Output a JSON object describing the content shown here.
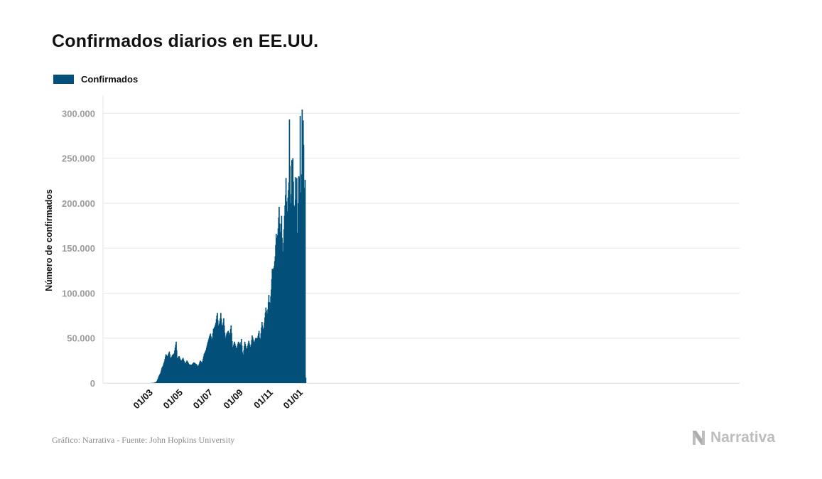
{
  "title": "Confirmados diarios en EE.UU.",
  "legend": {
    "label": "Confirmados",
    "color": "#03507a"
  },
  "footer": "Gráfico: Narrativa - Fuente: John Hopkins University",
  "brand": {
    "name": "Narrativa",
    "icon": "narrativa-n-logo"
  },
  "colors": {
    "bar": "#03507a",
    "grid": "#e6e6e6",
    "tick": "#9b9b9b"
  },
  "chart_data": {
    "type": "bar",
    "ylabel": "Número de confirmados",
    "xlabel": "",
    "ylim": [
      0,
      320000
    ],
    "yticks": [
      0,
      50000,
      100000,
      150000,
      200000,
      250000,
      300000
    ],
    "ytick_labels": [
      "0",
      "50.000",
      "100.000",
      "150.000",
      "200.000",
      "250.000",
      "300.000"
    ],
    "xticks": [
      "01/03",
      "01/05",
      "01/07",
      "01/09",
      "01/11",
      "01/01"
    ],
    "x_start": "2020-01-22",
    "x_end": "2021-01-12",
    "grid": true,
    "legend": "top-left",
    "series": [
      {
        "name": "Confirmados",
        "points": [
          [
            "2020-01-22",
            0
          ],
          [
            "2020-02-29",
            0
          ],
          [
            "2020-03-02",
            20
          ],
          [
            "2020-03-06",
            100
          ],
          [
            "2020-03-10",
            400
          ],
          [
            "2020-03-14",
            1000
          ],
          [
            "2020-03-16",
            2500
          ],
          [
            "2020-03-18",
            5000
          ],
          [
            "2020-03-20",
            8000
          ],
          [
            "2020-03-23",
            11000
          ],
          [
            "2020-03-26",
            17000
          ],
          [
            "2020-03-28",
            19000
          ],
          [
            "2020-03-31",
            24000
          ],
          [
            "2020-04-03",
            32000
          ],
          [
            "2020-04-06",
            29000
          ],
          [
            "2020-04-08",
            32000
          ],
          [
            "2020-04-10",
            35000
          ],
          [
            "2020-04-13",
            26000
          ],
          [
            "2020-04-16",
            31000
          ],
          [
            "2020-04-20",
            33000
          ],
          [
            "2020-04-24",
            46000
          ],
          [
            "2020-04-26",
            27000
          ],
          [
            "2020-04-30",
            30000
          ],
          [
            "2020-05-04",
            24000
          ],
          [
            "2020-05-08",
            28000
          ],
          [
            "2020-05-12",
            21000
          ],
          [
            "2020-05-16",
            25000
          ],
          [
            "2020-05-20",
            21000
          ],
          [
            "2020-05-25",
            20000
          ],
          [
            "2020-05-30",
            23000
          ],
          [
            "2020-06-04",
            21000
          ],
          [
            "2020-06-08",
            18000
          ],
          [
            "2020-06-12",
            25000
          ],
          [
            "2020-06-16",
            22000
          ],
          [
            "2020-06-20",
            32000
          ],
          [
            "2020-06-24",
            37000
          ],
          [
            "2020-06-27",
            44000
          ],
          [
            "2020-07-01",
            52000
          ],
          [
            "2020-07-03",
            55000
          ],
          [
            "2020-07-06",
            46000
          ],
          [
            "2020-07-09",
            60000
          ],
          [
            "2020-07-12",
            63000
          ],
          [
            "2020-07-14",
            67000
          ],
          [
            "2020-07-16",
            75000
          ],
          [
            "2020-07-17",
            78000
          ],
          [
            "2020-07-19",
            62000
          ],
          [
            "2020-07-21",
            66000
          ],
          [
            "2020-07-23",
            72000
          ],
          [
            "2020-07-24",
            78000
          ],
          [
            "2020-07-26",
            65000
          ],
          [
            "2020-07-28",
            63000
          ],
          [
            "2020-07-30",
            72000
          ],
          [
            "2020-08-02",
            48000
          ],
          [
            "2020-08-05",
            55000
          ],
          [
            "2020-08-08",
            58000
          ],
          [
            "2020-08-11",
            52000
          ],
          [
            "2020-08-14",
            64000
          ],
          [
            "2020-08-17",
            38000
          ],
          [
            "2020-08-21",
            46000
          ],
          [
            "2020-08-25",
            37000
          ],
          [
            "2020-08-29",
            46000
          ],
          [
            "2020-09-02",
            42000
          ],
          [
            "2020-09-04",
            49000
          ],
          [
            "2020-09-07",
            27000
          ],
          [
            "2020-09-11",
            46000
          ],
          [
            "2020-09-15",
            36000
          ],
          [
            "2020-09-19",
            47000
          ],
          [
            "2020-09-23",
            38000
          ],
          [
            "2020-09-26",
            53000
          ],
          [
            "2020-09-30",
            44000
          ],
          [
            "2020-10-03",
            50000
          ],
          [
            "2020-10-07",
            50000
          ],
          [
            "2020-10-10",
            58000
          ],
          [
            "2020-10-12",
            43000
          ],
          [
            "2020-10-16",
            68000
          ],
          [
            "2020-10-19",
            56000
          ],
          [
            "2020-10-22",
            73000
          ],
          [
            "2020-10-24",
            84000
          ],
          [
            "2020-10-27",
            74000
          ],
          [
            "2020-10-30",
            98000
          ],
          [
            "2020-11-01",
            82000
          ],
          [
            "2020-11-04",
            104000
          ],
          [
            "2020-11-06",
            127000
          ],
          [
            "2020-11-08",
            126000
          ],
          [
            "2020-11-10",
            130000
          ],
          [
            "2020-11-12",
            141000
          ],
          [
            "2020-11-14",
            166000
          ],
          [
            "2020-11-16",
            157000
          ],
          [
            "2020-11-18",
            172000
          ],
          [
            "2020-11-20",
            196000
          ],
          [
            "2020-11-22",
            159000
          ],
          [
            "2020-11-25",
            186000
          ],
          [
            "2020-11-27",
            137000
          ],
          [
            "2020-11-29",
            156000
          ],
          [
            "2020-12-01",
            186000
          ],
          [
            "2020-12-03",
            209000
          ],
          [
            "2020-12-04",
            228000
          ],
          [
            "2020-12-06",
            176000
          ],
          [
            "2020-12-08",
            206000
          ],
          [
            "2020-12-10",
            223000
          ],
          [
            "2020-12-11",
            293000
          ],
          [
            "2020-12-13",
            190000
          ],
          [
            "2020-12-15",
            210000
          ],
          [
            "2020-12-16",
            248000
          ],
          [
            "2020-12-17",
            244000
          ],
          [
            "2020-12-18",
            250000
          ],
          [
            "2020-12-20",
            198000
          ],
          [
            "2020-12-22",
            195000
          ],
          [
            "2020-12-23",
            229000
          ],
          [
            "2020-12-24",
            204000
          ],
          [
            "2020-12-25",
            110000
          ],
          [
            "2020-12-26",
            228000
          ],
          [
            "2020-12-27",
            151000
          ],
          [
            "2020-12-28",
            167000
          ],
          [
            "2020-12-29",
            200000
          ],
          [
            "2020-12-30",
            230000
          ],
          [
            "2020-12-31",
            229000
          ],
          [
            "2021-01-01",
            180000
          ],
          [
            "2021-01-02",
            297000
          ],
          [
            "2021-01-03",
            212000
          ],
          [
            "2021-01-04",
            176000
          ],
          [
            "2021-01-05",
            232000
          ],
          [
            "2021-01-06",
            304000
          ],
          [
            "2021-01-07",
            282000
          ],
          [
            "2021-01-08",
            292000
          ],
          [
            "2021-01-09",
            265000
          ],
          [
            "2021-01-10",
            217000
          ],
          [
            "2021-01-11",
            215000
          ],
          [
            "2021-01-12",
            226000
          ]
        ]
      }
    ]
  }
}
